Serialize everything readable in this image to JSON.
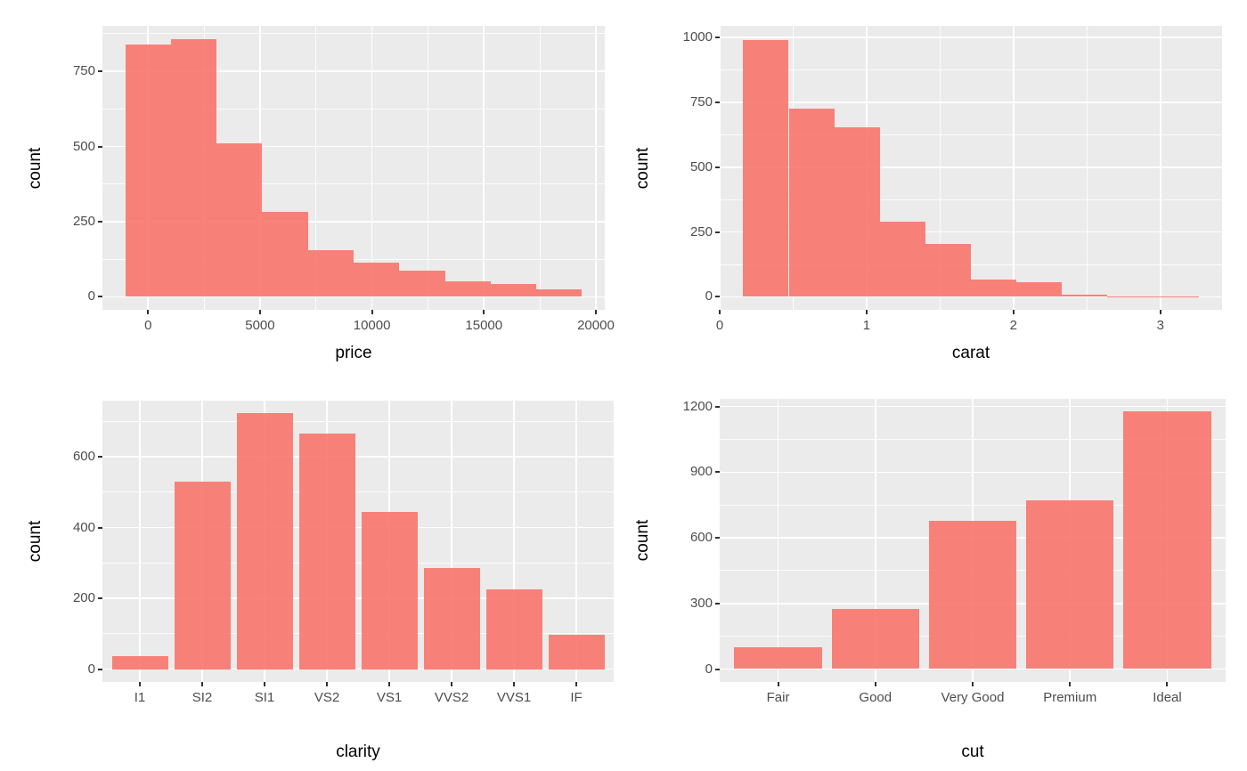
{
  "figure": {
    "description": "2x2 grid of ggplot-style diamond dataset charts",
    "colors": {
      "background": "#FFFFFF",
      "panel_background": "#EBEBEB",
      "gridline": "#FFFFFF",
      "bar_fill": "#F8766D",
      "bar_opacity": 0.9,
      "tick_label": "#4D4D4D",
      "axis_title": "#000000",
      "tick_mark": "#333333"
    }
  },
  "chart_data": [
    {
      "id": "price",
      "type": "histogram",
      "title": "",
      "xlabel": "price",
      "ylabel": "count",
      "bin_edges": [
        -1020,
        1020,
        3060,
        5100,
        7140,
        9180,
        11220,
        13260,
        15300,
        17340,
        19380
      ],
      "counts": [
        840,
        858,
        511,
        283,
        154,
        115,
        88,
        51,
        43,
        25
      ],
      "xlim": [
        -2040,
        20400
      ],
      "ylim": [
        -43,
        901
      ],
      "x_ticks": {
        "values": [
          0,
          5000,
          10000,
          15000,
          20000
        ],
        "labels": [
          "0",
          "5000",
          "10000",
          "15000",
          "20000"
        ]
      },
      "y_ticks": {
        "values": [
          0,
          250,
          500,
          750
        ],
        "labels": [
          "0",
          "250",
          "500",
          "750"
        ]
      },
      "grid": "major-and-minor",
      "legend": "none"
    },
    {
      "id": "carat",
      "type": "histogram",
      "title": "",
      "xlabel": "carat",
      "ylabel": "count",
      "bin_edges": [
        0.16,
        0.47,
        0.78,
        1.09,
        1.4,
        1.71,
        2.02,
        2.33,
        2.64,
        2.95,
        3.26
      ],
      "counts": [
        990,
        725,
        655,
        290,
        205,
        65,
        58,
        9,
        2,
        1
      ],
      "xlim": [
        0.0,
        3.42
      ],
      "ylim": [
        -50,
        1045
      ],
      "x_ticks": {
        "values": [
          0,
          1,
          2,
          3
        ],
        "labels": [
          "0",
          "1",
          "2",
          "3"
        ]
      },
      "y_ticks": {
        "values": [
          0,
          250,
          500,
          750,
          1000
        ],
        "labels": [
          "0",
          "250",
          "500",
          "750",
          "1000"
        ]
      },
      "grid": "major-and-minor",
      "legend": "none"
    },
    {
      "id": "clarity",
      "type": "bar",
      "title": "",
      "xlabel": "clarity",
      "ylabel": "count",
      "categories": [
        "I1",
        "SI2",
        "SI1",
        "VS2",
        "VS1",
        "VVS2",
        "VVS1",
        "IF"
      ],
      "values": [
        38,
        530,
        723,
        665,
        444,
        285,
        225,
        98
      ],
      "ylim": [
        -36,
        759
      ],
      "y_ticks": {
        "values": [
          0,
          200,
          400,
          600
        ],
        "labels": [
          "0",
          "200",
          "400",
          "600"
        ]
      },
      "bar_width_fraction": 0.9,
      "grid": "major-and-minor-y",
      "legend": "none"
    },
    {
      "id": "cut",
      "type": "bar",
      "title": "",
      "xlabel": "cut",
      "ylabel": "count",
      "categories": [
        "Fair",
        "Good",
        "Very Good",
        "Premium",
        "Ideal"
      ],
      "values": [
        101,
        273,
        677,
        771,
        1176
      ],
      "ylim": [
        -59,
        1235
      ],
      "y_ticks": {
        "values": [
          0,
          300,
          600,
          900,
          1200
        ],
        "labels": [
          "0",
          "300",
          "600",
          "900",
          "1200"
        ]
      },
      "bar_width_fraction": 0.9,
      "grid": "major-and-minor-y",
      "legend": "none"
    }
  ]
}
